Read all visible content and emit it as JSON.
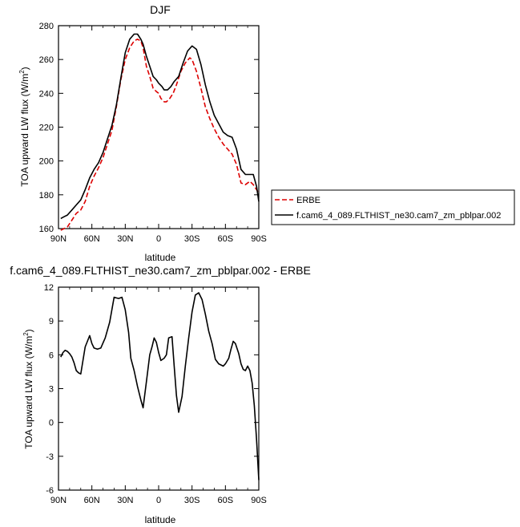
{
  "chart_data": [
    {
      "type": "line",
      "title": "DJF",
      "xlabel": "latitude",
      "ylabel": "TOA upward LW flux (W/m",
      "ylabel_sup": "2",
      "ylabel_close": ")",
      "xlim": [
        90,
        -90
      ],
      "ylim": [
        160,
        280
      ],
      "xticks": [
        90,
        60,
        30,
        0,
        -30,
        -60,
        -90
      ],
      "xtick_labels": [
        "90N",
        "60N",
        "30N",
        "0",
        "30S",
        "60S",
        "90S"
      ],
      "yticks": [
        160,
        180,
        200,
        220,
        240,
        260,
        280
      ],
      "ytick_labels": [
        "160",
        "180",
        "200",
        "220",
        "240",
        "260",
        "280"
      ],
      "legend_position": "right",
      "series": [
        {
          "name": "ERBE",
          "color": "#dd0000",
          "dash": "dashed",
          "x": [
            88,
            85,
            82,
            78,
            74,
            70,
            66,
            62,
            58,
            54,
            50,
            46,
            42,
            38,
            34,
            30,
            26,
            22,
            19,
            16,
            14,
            11,
            8,
            5,
            2,
            0,
            -2,
            -5,
            -7,
            -10,
            -13,
            -16,
            -20,
            -24,
            -28,
            -30,
            -34,
            -38,
            -42,
            -46,
            -50,
            -54,
            -58,
            -62,
            -66,
            -70,
            -74,
            -78,
            -82,
            -85,
            -88,
            -90
          ],
          "y": [
            159,
            160,
            161,
            165,
            169,
            171,
            176,
            185,
            191,
            196,
            202,
            210,
            218,
            232,
            248,
            260,
            267,
            271,
            272,
            271,
            267,
            256,
            250,
            243,
            241,
            240,
            237,
            235,
            235,
            237,
            240,
            245,
            253,
            258,
            261,
            260,
            253,
            243,
            232,
            225,
            219,
            214,
            210,
            207,
            204,
            198,
            187,
            186,
            188,
            186,
            183,
            181
          ]
        },
        {
          "name": "f.cam6_4_089.FLTHIST_ne30.cam7_zm_pblpar.002",
          "color": "#000000",
          "dash": "solid",
          "x": [
            88,
            85,
            82,
            78,
            74,
            70,
            66,
            62,
            58,
            54,
            50,
            46,
            42,
            38,
            34,
            30,
            26,
            22,
            19,
            16,
            14,
            11,
            8,
            5,
            2,
            0,
            -3,
            -5,
            -8,
            -11,
            -14,
            -18,
            -22,
            -26,
            -30,
            -34,
            -38,
            -42,
            -46,
            -50,
            -54,
            -58,
            -62,
            -66,
            -70,
            -74,
            -78,
            -82,
            -85,
            -88,
            -90
          ],
          "y": [
            166,
            167,
            168,
            171,
            174,
            177,
            183,
            190,
            195,
            199,
            205,
            213,
            221,
            233,
            249,
            264,
            272,
            275,
            275,
            272,
            269,
            262,
            256,
            250,
            248,
            246,
            244,
            242,
            242,
            244,
            247,
            250,
            258,
            265,
            268,
            266,
            257,
            245,
            235,
            227,
            222,
            217,
            215,
            214,
            207,
            195,
            192,
            192,
            192,
            185,
            176
          ]
        }
      ]
    },
    {
      "type": "line",
      "title": "f.cam6_4_089.FLTHIST_ne30.cam7_zm_pblpar.002 - ERBE",
      "xlabel": "latitude",
      "ylabel": "TOA upward LW flux (W/m",
      "ylabel_sup": "2",
      "ylabel_close": ")",
      "xlim": [
        90,
        -90
      ],
      "ylim": [
        -6,
        12
      ],
      "xticks": [
        90,
        60,
        30,
        0,
        -30,
        -60,
        -90
      ],
      "xtick_labels": [
        "90N",
        "60N",
        "30N",
        "0",
        "30S",
        "60S",
        "90S"
      ],
      "yticks": [
        -6,
        -3,
        0,
        3,
        6,
        9,
        12
      ],
      "ytick_labels": [
        "-6",
        "-3",
        "0",
        "3",
        "6",
        "9",
        "12"
      ],
      "series": [
        {
          "color": "#000000",
          "dash": "solid",
          "x": [
            88,
            86,
            84,
            82,
            80,
            78,
            76,
            74,
            72,
            70,
            66,
            64,
            62,
            60,
            58,
            55,
            52,
            48,
            44,
            40,
            36,
            33,
            30,
            27,
            25,
            22,
            19,
            16,
            14,
            11,
            8,
            6,
            4,
            2,
            0,
            -2,
            -5,
            -7,
            -9,
            -12,
            -14,
            -16,
            -18,
            -21,
            -24,
            -27,
            -30,
            -33,
            -36,
            -39,
            -42,
            -45,
            -48,
            -51,
            -54,
            -56,
            -58,
            -60,
            -63,
            -65,
            -67,
            -69,
            -72,
            -74,
            -76,
            -78,
            -80,
            -82,
            -84,
            -86,
            -88,
            -90
          ],
          "y": [
            5.8,
            6.2,
            6.4,
            6.3,
            6.1,
            5.8,
            5.3,
            4.6,
            4.4,
            4.3,
            6.7,
            7.2,
            7.7,
            7.0,
            6.6,
            6.5,
            6.6,
            7.5,
            8.9,
            11.1,
            11.0,
            11.1,
            10.0,
            8.0,
            5.7,
            4.6,
            3.2,
            2.0,
            1.3,
            3.6,
            6.0,
            6.7,
            7.5,
            7.1,
            6.2,
            5.5,
            5.7,
            6.0,
            7.5,
            7.6,
            5.0,
            2.4,
            0.9,
            2.3,
            5.0,
            7.5,
            9.8,
            11.3,
            11.5,
            10.9,
            9.6,
            8.1,
            7.0,
            5.6,
            5.2,
            5.1,
            5.0,
            5.2,
            5.7,
            6.5,
            7.2,
            7.0,
            6.1,
            5.2,
            4.7,
            4.6,
            5.0,
            4.6,
            3.5,
            1.5,
            -1.5,
            -5.1
          ]
        }
      ]
    }
  ]
}
